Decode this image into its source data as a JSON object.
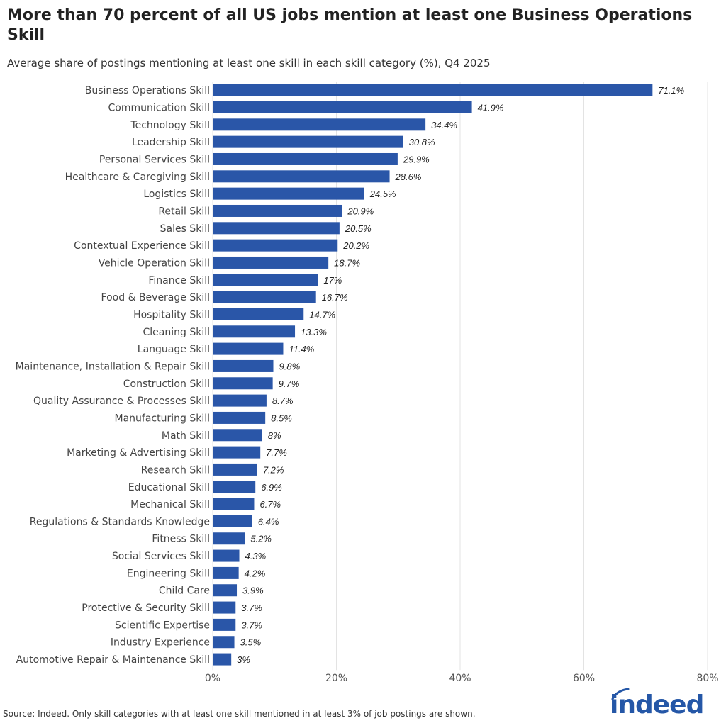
{
  "title": "More than 70 percent of all US jobs mention at least one Business Operations Skill",
  "subtitle": "Average share of postings mentioning at least one skill in each skill category (%), Q4 2025",
  "source": "Source: Indeed. Only skill categories with at least one skill mentioned in at least 3% of job postings are shown.",
  "logo": "indeed",
  "chart_data": {
    "type": "bar",
    "orientation": "horizontal",
    "bar_color": "#2a56a8",
    "grid": true,
    "xlim": [
      0,
      80
    ],
    "xticks": [
      0,
      20,
      40,
      60,
      80
    ],
    "xtick_labels": [
      "0%",
      "20%",
      "40%",
      "60%",
      "80%"
    ],
    "categories": [
      "Business Operations Skill",
      "Communication Skill",
      "Technology Skill",
      "Leadership Skill",
      "Personal Services Skill",
      "Healthcare & Caregiving Skill",
      "Logistics Skill",
      "Retail Skill",
      "Sales Skill",
      "Contextual Experience Skill",
      "Vehicle Operation Skill",
      "Finance Skill",
      "Food & Beverage Skill",
      "Hospitality Skill",
      "Cleaning Skill",
      "Language Skill",
      "Maintenance, Installation & Repair Skill",
      "Construction Skill",
      "Quality Assurance & Processes Skill",
      "Manufacturing Skill",
      "Math Skill",
      "Marketing & Advertising Skill",
      "Research Skill",
      "Educational Skill",
      "Mechanical Skill",
      "Regulations & Standards Knowledge",
      "Fitness Skill",
      "Social Services Skill",
      "Engineering Skill",
      "Child Care",
      "Protective & Security Skill",
      "Scientific Expertise",
      "Industry Experience",
      "Automotive Repair & Maintenance Skill"
    ],
    "values": [
      71.1,
      41.9,
      34.4,
      30.8,
      29.9,
      28.6,
      24.5,
      20.9,
      20.5,
      20.2,
      18.7,
      17,
      16.7,
      14.7,
      13.3,
      11.4,
      9.8,
      9.7,
      8.7,
      8.5,
      8,
      7.7,
      7.2,
      6.9,
      6.7,
      6.4,
      5.2,
      4.3,
      4.2,
      3.9,
      3.7,
      3.7,
      3.5,
      3
    ],
    "value_labels": [
      "71.1%",
      "41.9%",
      "34.4%",
      "30.8%",
      "29.9%",
      "28.6%",
      "24.5%",
      "20.9%",
      "20.5%",
      "20.2%",
      "18.7%",
      "17%",
      "16.7%",
      "14.7%",
      "13.3%",
      "11.4%",
      "9.8%",
      "9.7%",
      "8.7%",
      "8.5%",
      "8%",
      "7.7%",
      "7.2%",
      "6.9%",
      "6.7%",
      "6.4%",
      "5.2%",
      "4.3%",
      "4.2%",
      "3.9%",
      "3.7%",
      "3.7%",
      "3.5%",
      "3%"
    ]
  }
}
